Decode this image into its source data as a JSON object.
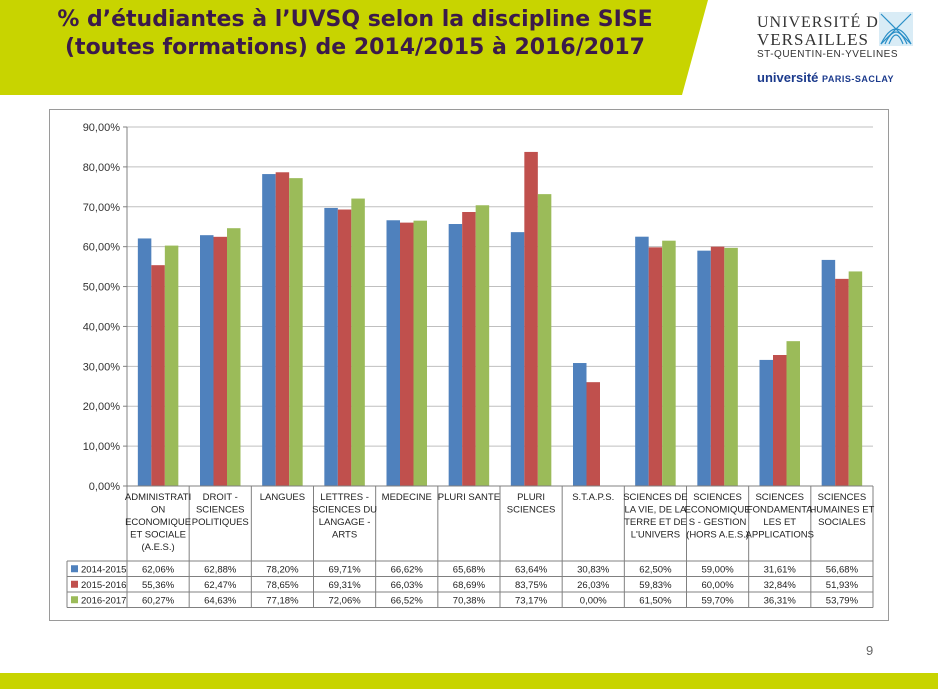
{
  "slide": {
    "title": "% d’étudiantes à l’UVSQ selon la discipline SISE (toutes formations) de 2014/2015 à 2016/2017",
    "page_number": "9",
    "accent_color": "#c8d400",
    "title_color": "#3b1a4a"
  },
  "logo": {
    "line1": "UNIVERSITÉ DE",
    "line2": "VERSAILLES",
    "line3": "ST-QUENTIN-EN-YVELINES",
    "line4_main": "université",
    "line4_small": "PARIS-SACLAY",
    "emblem_icon": "uvsq-emblem-icon"
  },
  "chart_data": {
    "type": "bar",
    "ylim": [
      0,
      90
    ],
    "y_ticks": [
      "0,00%",
      "10,00%",
      "20,00%",
      "30,00%",
      "40,00%",
      "50,00%",
      "60,00%",
      "70,00%",
      "80,00%",
      "90,00%"
    ],
    "grid": true,
    "legend": "table-below",
    "categories": [
      [
        "ADMINISTRATI",
        "ON",
        "ECONOMIQUE",
        "ET SOCIALE",
        "(A.E.S.)"
      ],
      [
        "DROIT -",
        "SCIENCES",
        "POLITIQUES"
      ],
      [
        "LANGUES"
      ],
      [
        "LETTRES -",
        "SCIENCES DU",
        "LANGAGE -",
        "ARTS"
      ],
      [
        "MEDECINE"
      ],
      [
        "PLURI SANTE"
      ],
      [
        "PLURI",
        "SCIENCES"
      ],
      [
        "S.T.A.P.S."
      ],
      [
        "SCIENCES DE",
        "LA VIE, DE LA",
        "TERRE ET DE",
        "L'UNIVERS"
      ],
      [
        "SCIENCES",
        "ECONOMIQUE",
        "S - GESTION",
        "(HORS A.E.S.)"
      ],
      [
        "SCIENCES",
        "FONDAMENTA",
        "LES ET",
        "APPLICATIONS"
      ],
      [
        "SCIENCES",
        "HUMAINES ET",
        "SOCIALES"
      ]
    ],
    "series": [
      {
        "name": "2014-2015",
        "color": "#4f81bd",
        "values": [
          62.06,
          62.88,
          78.2,
          69.71,
          66.62,
          65.68,
          63.64,
          30.83,
          62.5,
          59.0,
          31.61,
          56.68
        ],
        "labels": [
          "62,06%",
          "62,88%",
          "78,20%",
          "69,71%",
          "66,62%",
          "65,68%",
          "63,64%",
          "30,83%",
          "62,50%",
          "59,00%",
          "31,61%",
          "56,68%"
        ]
      },
      {
        "name": "2015-2016",
        "color": "#c0504d",
        "values": [
          55.36,
          62.47,
          78.65,
          69.31,
          66.03,
          68.69,
          83.75,
          26.03,
          59.83,
          60.0,
          32.84,
          51.93
        ],
        "labels": [
          "55,36%",
          "62,47%",
          "78,65%",
          "69,31%",
          "66,03%",
          "68,69%",
          "83,75%",
          "26,03%",
          "59,83%",
          "60,00%",
          "32,84%",
          "51,93%"
        ]
      },
      {
        "name": "2016-2017",
        "color": "#9bbb59",
        "values": [
          60.27,
          64.63,
          77.18,
          72.06,
          66.52,
          70.38,
          73.17,
          0.0,
          61.5,
          59.7,
          36.31,
          53.79
        ],
        "labels": [
          "60,27%",
          "64,63%",
          "77,18%",
          "72,06%",
          "66,52%",
          "70,38%",
          "73,17%",
          "0,00%",
          "61,50%",
          "59,70%",
          "36,31%",
          "53,79%"
        ]
      }
    ]
  }
}
